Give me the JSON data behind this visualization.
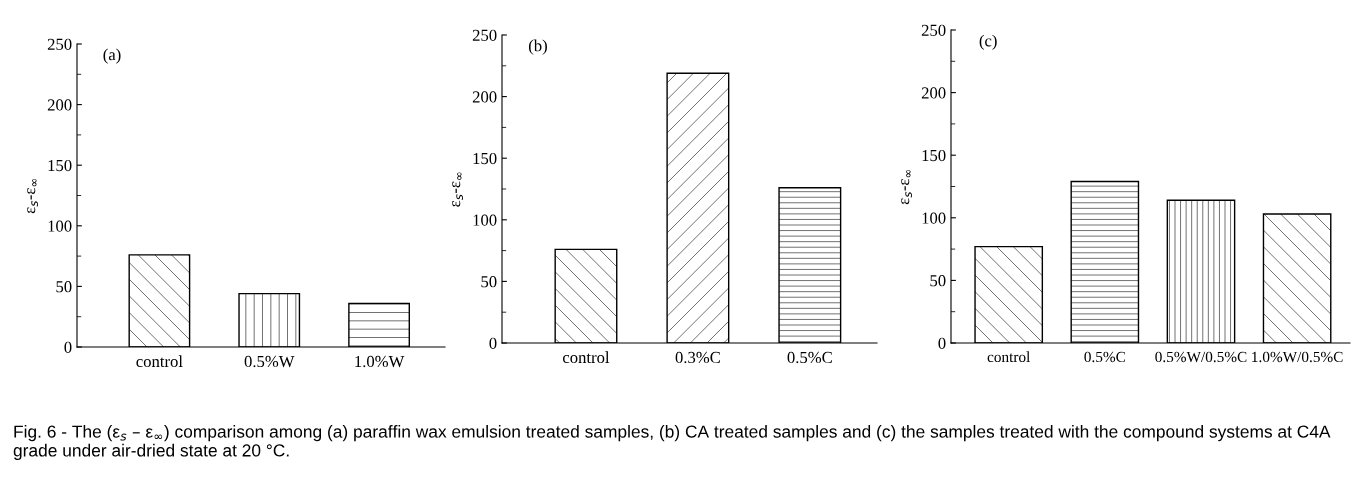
{
  "chart_data": [
    {
      "type": "bar",
      "title": "(a)",
      "ylabel": "ε$_{s}$-ε$_{∞}$",
      "categories": [
        "control",
        "0.5%W",
        "1.0%W"
      ],
      "values": [
        76,
        44,
        36
      ],
      "color": "#000000",
      "ylim": [
        0,
        250
      ],
      "yticks": [
        0,
        50,
        100,
        150,
        200,
        250
      ],
      "grid": false,
      "legend": false,
      "annotations": [
        "Fig. 6 - The (ε$_{s}$ – ε$_{∞}$) comparison among (a) paraffin wax emulsion treated samples, (b) CA treated samples and (c) the samples treated with the compound systems at C4A grade under air-dried state at 20 °C."
      ]
    },
    {
      "type": "bar",
      "title": "(b)",
      "ylabel": "ε$_{s}$-ε$_{∞}$",
      "categories": [
        "control",
        "0.3%C",
        "0.5%C"
      ],
      "values": [
        76,
        219,
        126
      ],
      "color": "#000000",
      "ylim": [
        0,
        250
      ],
      "yticks": [
        0,
        50,
        100,
        150,
        200,
        250
      ],
      "grid": false,
      "legend": false
    },
    {
      "type": "bar",
      "title": "(c)",
      "ylabel": "ε$_{s}$-ε$_{∞}$",
      "categories": [
        "control",
        "0.5%C",
        "0.5%W/0.5%C",
        "1.0%W/0.5%C"
      ],
      "values": [
        77,
        129,
        114,
        103
      ],
      "color": "#000000",
      "ylim": [
        0,
        250
      ],
      "yticks": [
        0,
        50,
        100,
        150,
        200,
        250
      ],
      "grid": false,
      "legend": false
    }
  ]
}
